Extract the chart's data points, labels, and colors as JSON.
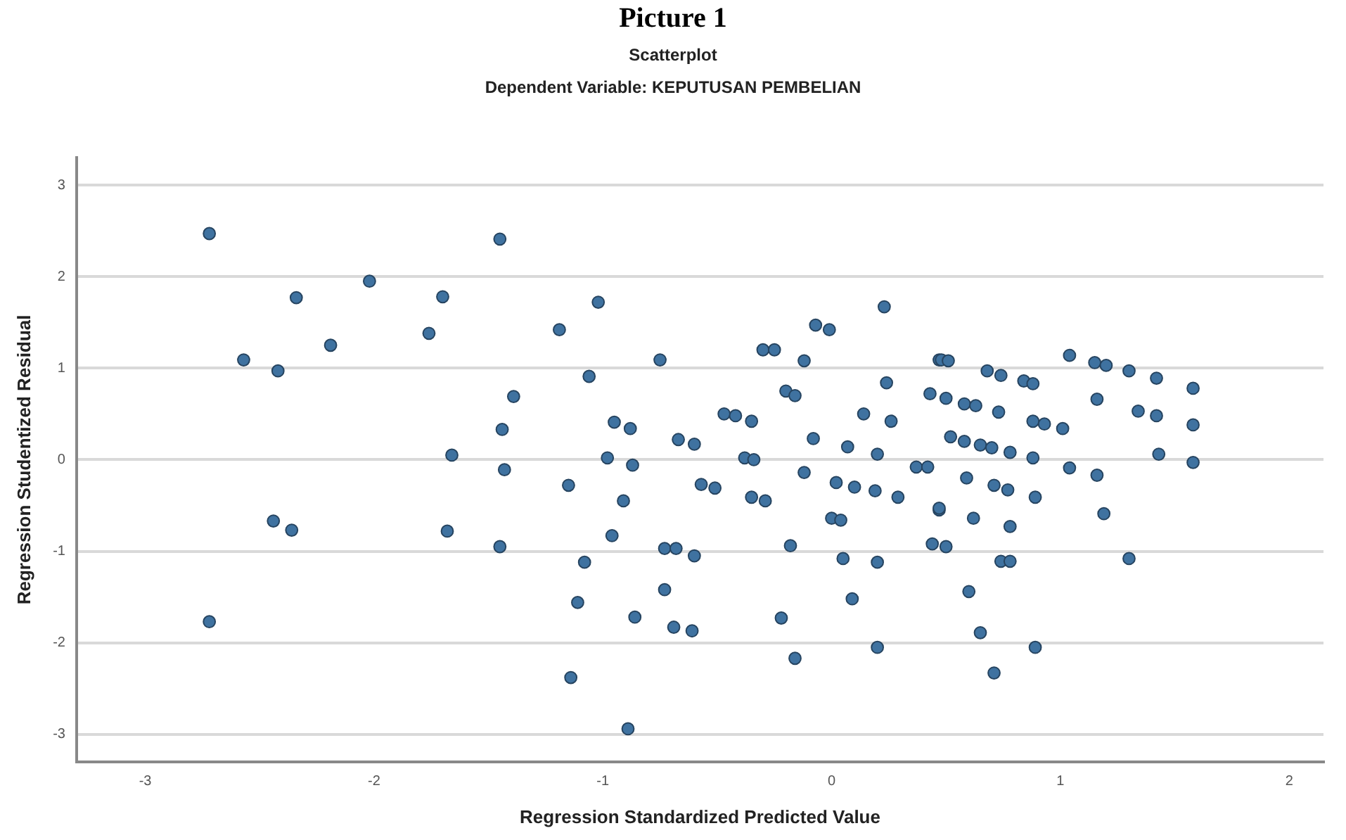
{
  "chart_data": {
    "type": "scatter",
    "title": "Scatterplot",
    "subtitle": "Dependent Variable: KEPUTUSAN PEMBELIAN",
    "annotations": [
      "Picture 1"
    ],
    "xlabel": "Regression Standardized Predicted Value",
    "ylabel": "Regression Studentized Residual",
    "xlim": [
      -3.3,
      2.15
    ],
    "ylim": [
      -3.3,
      3.3
    ],
    "xticks": [
      -3,
      -2,
      -1,
      0,
      1,
      2
    ],
    "yticks": [
      -3,
      -2,
      -1,
      0,
      1,
      2,
      3
    ],
    "grid": "y",
    "marker": "circle",
    "legend": false,
    "series": [
      {
        "color": "#3f72a0",
        "x": [
          -2.72,
          -1.45,
          -2.02,
          -2.34,
          -1.7,
          -1.76,
          -2.19,
          -2.57,
          -2.42,
          -1.39,
          -1.44,
          -1.66,
          -1.43,
          -2.44,
          -2.36,
          -1.68,
          -1.45,
          -2.72,
          -1.02,
          -1.19,
          -0.75,
          -1.06,
          -0.95,
          -0.88,
          -0.98,
          -0.87,
          -1.15,
          -0.91,
          -0.96,
          -0.73,
          -0.68,
          -0.6,
          -1.08,
          -0.67,
          -0.6,
          -0.57,
          -0.51,
          -0.47,
          -0.42,
          -0.35,
          -0.38,
          -0.34,
          -0.35,
          -0.29,
          -0.3,
          -0.25,
          -0.12,
          -0.07,
          -0.01,
          0.23,
          -0.2,
          -0.16,
          -0.08,
          -0.12,
          0.07,
          0.14,
          0.24,
          0.26,
          0.2,
          0.02,
          0.1,
          0.19,
          0.29,
          0.0,
          0.04,
          -0.18,
          0.05,
          0.2,
          0.37,
          0.42,
          0.43,
          0.47,
          0.47,
          0.44,
          0.48,
          0.51,
          0.68,
          0.74,
          0.84,
          0.88,
          1.04,
          1.15,
          1.2,
          1.3,
          1.42,
          1.58,
          0.5,
          0.58,
          0.63,
          0.73,
          0.88,
          0.93,
          1.01,
          1.16,
          1.34,
          1.42,
          1.58,
          0.52,
          0.58,
          0.65,
          0.7,
          0.78,
          0.88,
          1.43,
          1.58,
          1.04,
          1.16,
          0.59,
          0.71,
          0.77,
          0.89,
          0.47,
          0.62,
          0.78,
          1.19,
          0.5,
          0.74,
          0.78,
          1.3,
          0.6,
          0.65,
          0.89,
          0.71,
          -1.11,
          -0.73,
          -0.86,
          -0.69,
          -0.61,
          -0.22,
          0.09,
          0.2,
          -0.16,
          -1.14,
          -0.89
        ],
        "values": [
          2.47,
          2.41,
          1.95,
          1.77,
          1.78,
          1.38,
          1.25,
          1.09,
          0.97,
          0.69,
          0.33,
          0.05,
          -0.11,
          -0.67,
          -0.77,
          -0.78,
          -0.95,
          -1.77,
          1.72,
          1.42,
          1.09,
          0.91,
          0.41,
          0.34,
          0.02,
          -0.06,
          -0.28,
          -0.45,
          -0.83,
          -0.97,
          -0.97,
          -1.05,
          -1.12,
          0.22,
          0.17,
          -0.27,
          -0.31,
          0.5,
          0.48,
          0.42,
          0.02,
          0.0,
          -0.41,
          -0.45,
          1.2,
          1.2,
          1.08,
          1.47,
          1.42,
          1.67,
          0.75,
          0.7,
          0.23,
          -0.14,
          0.14,
          0.5,
          0.84,
          0.42,
          0.06,
          -0.25,
          -0.3,
          -0.34,
          -0.41,
          -0.64,
          -0.66,
          -0.94,
          -1.08,
          -1.12,
          -0.08,
          -0.08,
          0.72,
          1.09,
          -0.55,
          -0.92,
          1.09,
          1.08,
          0.97,
          0.92,
          0.86,
          0.83,
          1.14,
          1.06,
          1.03,
          0.97,
          0.89,
          0.78,
          0.67,
          0.61,
          0.59,
          0.52,
          0.42,
          0.39,
          0.34,
          0.66,
          0.53,
          0.48,
          0.38,
          0.25,
          0.2,
          0.16,
          0.13,
          0.08,
          0.02,
          0.06,
          -0.03,
          -0.09,
          -0.17,
          -0.2,
          -0.28,
          -0.33,
          -0.41,
          -0.53,
          -0.64,
          -0.73,
          -0.59,
          -0.95,
          -1.11,
          -1.11,
          -1.08,
          -1.44,
          -1.89,
          -2.05,
          -2.33,
          -1.56,
          -1.42,
          -1.72,
          -1.83,
          -1.87,
          -1.73,
          -1.52,
          -2.05,
          -2.17,
          -2.38,
          -2.94
        ]
      }
    ]
  }
}
